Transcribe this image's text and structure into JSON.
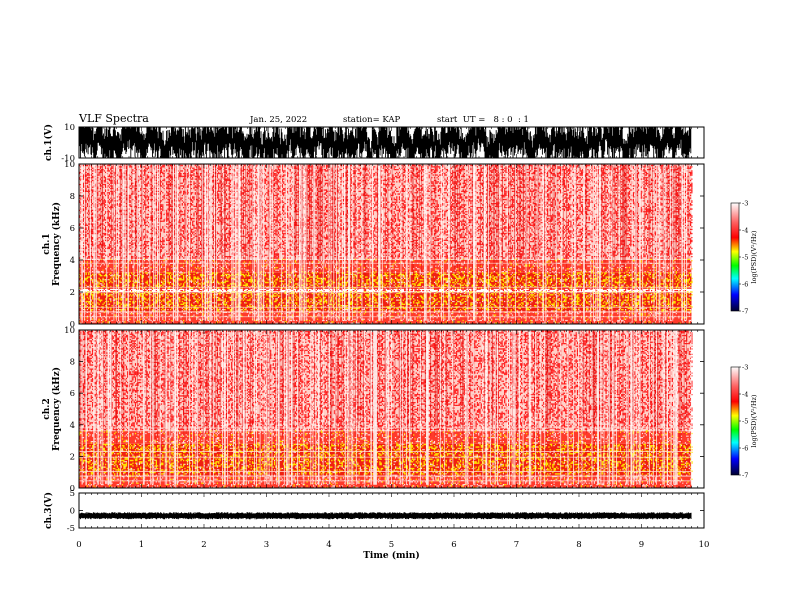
{
  "header": {
    "title": "VLF Spectra",
    "date": "Jan. 25, 2022",
    "station": "station= KAP",
    "start": "start  UT =   8 : 0  : 1"
  },
  "chart_data": [
    {
      "type": "line",
      "name": "ch1-waveform",
      "ylabel": "ch.1(V)",
      "ylim": [
        -10,
        10
      ],
      "yticks": [
        "10",
        "-10"
      ],
      "description_value": "dense oscillation filling most of the +/-10 V range",
      "color": "#000000"
    },
    {
      "type": "heatmap",
      "name": "ch1-spectrogram",
      "ylabel": "ch.1",
      "ylabel2": "Frequency  (kHz)",
      "ylim": [
        0,
        10
      ],
      "yticks": [
        "0",
        "2",
        "4",
        "6",
        "8",
        "10"
      ],
      "bands_khz": [
        [
          0.8,
          2.0,
          "strong"
        ],
        [
          2.2,
          3.2,
          "strong"
        ],
        [
          0.0,
          0.8,
          "medium"
        ],
        [
          3.2,
          4.0,
          "medium"
        ],
        [
          4.0,
          10.0,
          "weak"
        ]
      ]
    },
    {
      "type": "heatmap",
      "name": "ch2-spectrogram",
      "ylabel": "ch.2",
      "ylabel2": "Frequency  (kHz)",
      "ylim": [
        0,
        10
      ],
      "yticks": [
        "0",
        "2",
        "4",
        "6",
        "8",
        "10"
      ],
      "bands_khz": [
        [
          0.8,
          2.0,
          "strong"
        ],
        [
          2.0,
          2.8,
          "strong"
        ],
        [
          0.0,
          0.8,
          "medium"
        ],
        [
          2.8,
          3.6,
          "medium"
        ],
        [
          3.6,
          10.0,
          "weak"
        ]
      ]
    },
    {
      "type": "line",
      "name": "ch3-waveform",
      "ylabel": "ch.3(V)",
      "ylim": [
        -5,
        5
      ],
      "yticks": [
        "5",
        "0",
        "-5"
      ],
      "mean_value": -1.5,
      "color": "#000000"
    }
  ],
  "xaxis": {
    "label": "Time  (min)",
    "xlim": [
      0,
      10
    ],
    "ticks": [
      "0",
      "1",
      "2",
      "3",
      "4",
      "5",
      "6",
      "7",
      "8",
      "9",
      "10"
    ],
    "data_end_min": 9.8
  },
  "colorbar": {
    "label": "log(PSD)(V²/Hz)",
    "ticks": [
      "-3",
      "-4",
      "-5",
      "-6",
      "-7"
    ],
    "stops": [
      "#ffffff",
      "#ff4040",
      "#ff0000",
      "#ffff00",
      "#00ff00",
      "#00ffff",
      "#0000ff",
      "#000040"
    ]
  }
}
